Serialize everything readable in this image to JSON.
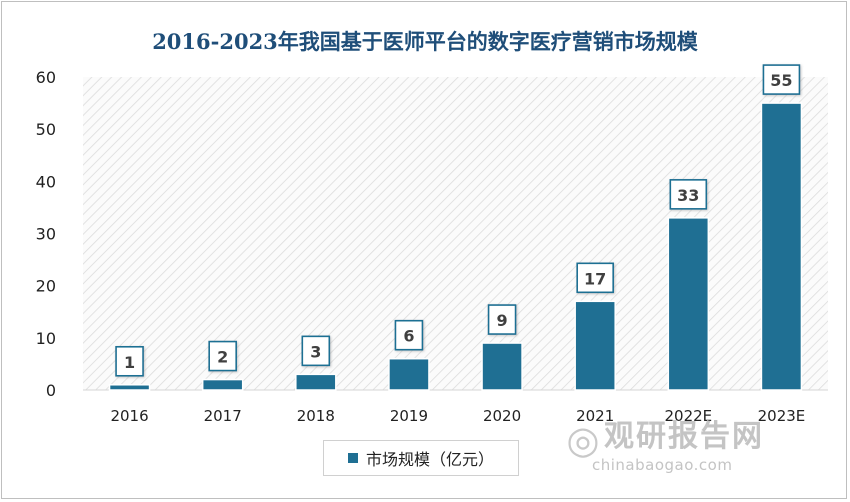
{
  "chart_data": {
    "type": "bar",
    "title": "2016-2023年我国基于医师平台的数字医疗营销市场规模",
    "categories": [
      "2016",
      "2017",
      "2018",
      "2019",
      "2020",
      "2021",
      "2022E",
      "2023E"
    ],
    "series": [
      {
        "name": "市场规模（亿元）",
        "values": [
          1,
          2,
          3,
          6,
          9,
          17,
          33,
          55
        ]
      }
    ],
    "ylim": [
      0,
      60
    ],
    "yticks": [
      0,
      10,
      20,
      30,
      40,
      50,
      60
    ],
    "grid": false,
    "legend": "bottom",
    "bar_color": "#1f6f93",
    "plot_background": "hatched light gray"
  },
  "watermark": {
    "brand_cn": "观研报告网",
    "brand_en": "chinabaogao.com"
  }
}
